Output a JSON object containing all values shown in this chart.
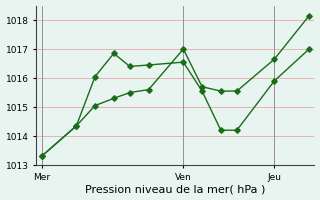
{
  "title": "",
  "xlabel": "Pression niveau de la mer( hPa )",
  "ylabel": "",
  "background_color": "#e8f4f0",
  "grid_color": "#e8a8a8",
  "line_color": "#1a6b1a",
  "ylim": [
    1013,
    1018.5
  ],
  "yticks": [
    1013,
    1014,
    1015,
    1016,
    1017,
    1018
  ],
  "day_labels": [
    "Mer",
    "Ven",
    "Jeu"
  ],
  "day_positions": [
    0.0,
    0.53,
    0.87
  ],
  "series1_x": [
    0.0,
    0.13,
    0.2,
    0.27,
    0.33,
    0.4,
    0.53,
    0.6,
    0.67,
    0.73,
    0.87,
    1.0
  ],
  "series1_y": [
    1013.3,
    1014.35,
    1016.05,
    1016.85,
    1016.4,
    1016.45,
    1016.55,
    1015.55,
    1014.2,
    1014.2,
    1015.9,
    1017.0
  ],
  "series2_x": [
    0.0,
    0.13,
    0.2,
    0.27,
    0.33,
    0.4,
    0.53,
    0.6,
    0.67,
    0.73,
    0.87,
    1.0
  ],
  "series2_y": [
    1013.3,
    1014.35,
    1015.05,
    1015.3,
    1015.5,
    1015.6,
    1017.0,
    1015.7,
    1015.55,
    1015.55,
    1016.65,
    1018.15
  ],
  "vline_x": [
    0.0,
    0.53,
    0.87
  ],
  "marker_size": 2.8,
  "line_width": 1.0,
  "tick_fontsize": 6.5,
  "xlabel_fontsize": 8.0
}
